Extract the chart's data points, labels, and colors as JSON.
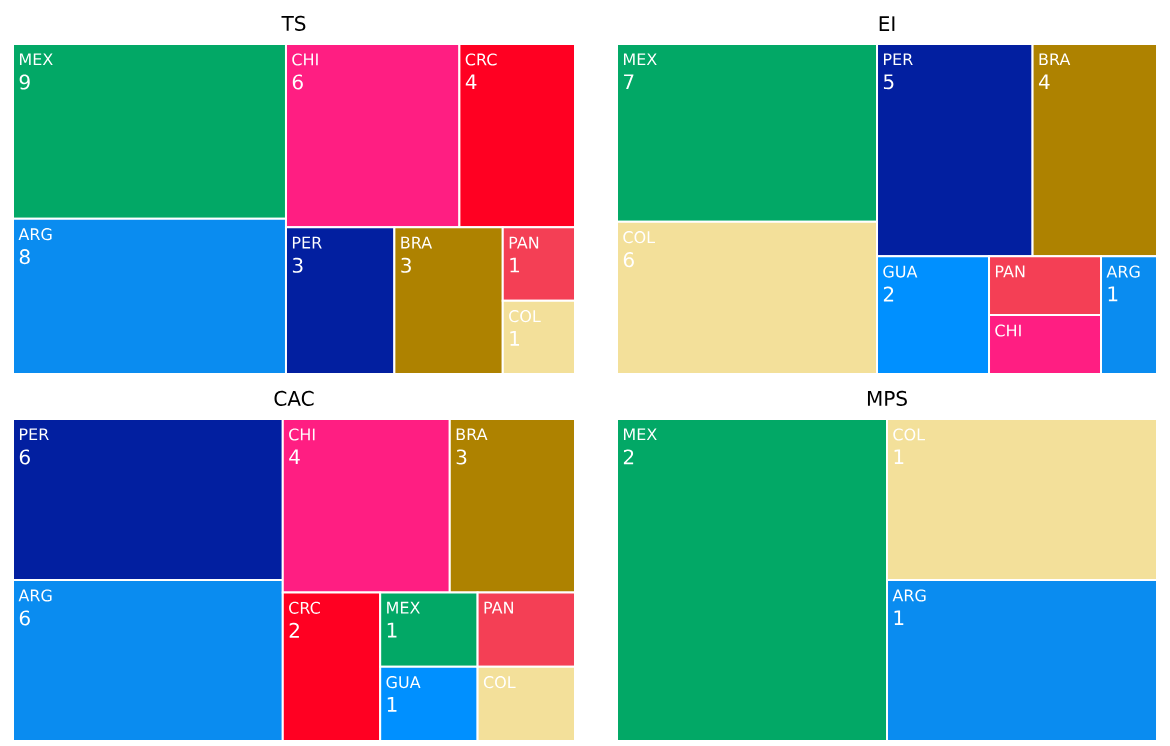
{
  "chart_data": [
    {
      "type": "other",
      "title": "TS",
      "data_labels": true,
      "categories": [
        "MEX",
        "ARG",
        "CHI",
        "CRC",
        "PER",
        "BRA",
        "PAN",
        "COL"
      ],
      "values": [
        9,
        8,
        6,
        4,
        3,
        3,
        1,
        1
      ],
      "colors": [
        "#02a866",
        "#0a8cf0",
        "#ff1e82",
        "#ff0022",
        "#021fa0",
        "#ae8200",
        "#f43f55",
        "#f3e09a"
      ]
    },
    {
      "type": "other",
      "title": "EI",
      "data_labels": true,
      "categories": [
        "MEX",
        "COL",
        "PER",
        "BRA",
        "GUA",
        "PAN",
        "CHI",
        "ARG"
      ],
      "values": [
        7,
        6,
        5,
        4,
        2,
        null,
        null,
        1
      ],
      "colors": [
        "#02a866",
        "#f3e09a",
        "#021fa0",
        "#ae8200",
        "#0090ff",
        "#f43f55",
        "#ff1e82",
        "#0a8cf0"
      ]
    },
    {
      "type": "other",
      "title": "CAC",
      "data_labels": true,
      "categories": [
        "PER",
        "ARG",
        "CHI",
        "BRA",
        "CRC",
        "MEX",
        "GUA",
        "PAN",
        "COL"
      ],
      "values": [
        6,
        6,
        4,
        3,
        2,
        1,
        1,
        null,
        null
      ],
      "colors": [
        "#021fa0",
        "#0a8cf0",
        "#ff1e82",
        "#ae8200",
        "#ff0022",
        "#02a866",
        "#0090ff",
        "#f43f55",
        "#f3e09a"
      ]
    },
    {
      "type": "other",
      "title": "MPS",
      "data_labels": true,
      "categories": [
        "MEX",
        "COL",
        "ARG"
      ],
      "values": [
        2,
        1,
        1
      ],
      "colors": [
        "#02a866",
        "#f3e09a",
        "#0a8cf0"
      ]
    }
  ]
}
